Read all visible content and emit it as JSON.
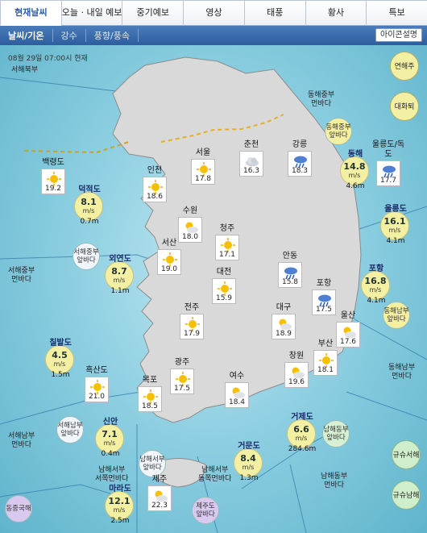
{
  "tabs": [
    {
      "label": "현재날씨",
      "active": true
    },
    {
      "label": "오늘 · 내일 예보",
      "active": false
    },
    {
      "label": "중기예보",
      "active": false
    },
    {
      "label": "영상",
      "active": false
    },
    {
      "label": "태풍",
      "active": false
    },
    {
      "label": "황사",
      "active": false
    },
    {
      "label": "특보",
      "active": false
    }
  ],
  "subnav": [
    {
      "label": "날씨/기온",
      "active": true
    },
    {
      "label": "강수",
      "active": false
    },
    {
      "label": "풍향/풍속",
      "active": false
    }
  ],
  "icon_help_label": "아이콘설명",
  "timestamp": "08월 29일 07:00시 현재",
  "regions": {
    "w_north": "서해북부",
    "w_mid": "서해중부\n먼바다",
    "w_south": "서해남부\n먼바다",
    "e_mid": "동해중부\n먼바다",
    "e_south": "동해남부\n먼바다",
    "s_mid_w": "남해서부\n서쪽먼바다",
    "s_east": "남해서부\n동쪽먼바다",
    "s_far": "남해동부\n먼바다"
  },
  "sea_bubbles": {
    "e_mid_near": "동해중부\n앞바다",
    "w_mid_near": "서해중부\n앞바다",
    "e_south_near": "동해남부\n앞바다",
    "w_south_near": "서해남부\n앞바다",
    "s_w_near": "남해서부\n앞바다",
    "s_e_near": "남해동부\n앞바다",
    "jeju_near": "제주도\n앞바다",
    "china_east": "동중국해"
  },
  "side_buttons": {
    "yeonhae": "연해주",
    "daehwa": "대화퇴",
    "gyushu_w": "규슈서해",
    "gyushu_s": "규슈남해"
  },
  "cities": [
    {
      "name": "백령도",
      "temp": "19.2",
      "icon": "sun-icon"
    },
    {
      "name": "인천",
      "temp": "18.6",
      "icon": "sun-icon"
    },
    {
      "name": "서울",
      "temp": "17.8",
      "icon": "sun-icon"
    },
    {
      "name": "수원",
      "temp": "18.0",
      "icon": "partly-cloudy-icon"
    },
    {
      "name": "춘천",
      "temp": "16.3",
      "icon": "cloud-icon"
    },
    {
      "name": "강릉",
      "temp": "18.3",
      "icon": "rain-icon"
    },
    {
      "name": "울릉도/독도",
      "temp": "17.7",
      "icon": "rain-icon"
    },
    {
      "name": "서산",
      "temp": "19.0",
      "icon": "sun-icon"
    },
    {
      "name": "청주",
      "temp": "17.1",
      "icon": "sun-icon"
    },
    {
      "name": "대전",
      "temp": "15.9",
      "icon": "sun-icon"
    },
    {
      "name": "안동",
      "temp": "15.8",
      "icon": "rain-icon"
    },
    {
      "name": "포항",
      "temp": "17.5",
      "icon": "rain-icon"
    },
    {
      "name": "전주",
      "temp": "17.9",
      "icon": "sun-icon"
    },
    {
      "name": "대구",
      "temp": "18.9",
      "icon": "partly-cloudy-icon"
    },
    {
      "name": "울산",
      "temp": "17.6",
      "icon": "partly-cloudy-icon"
    },
    {
      "name": "부산",
      "temp": "18.1",
      "icon": "sun-icon"
    },
    {
      "name": "흑산도",
      "temp": "21.0",
      "icon": "sun-icon"
    },
    {
      "name": "광주",
      "temp": "17.5",
      "icon": "sun-icon"
    },
    {
      "name": "창원",
      "temp": "19.6",
      "icon": "partly-cloudy-icon"
    },
    {
      "name": "목포",
      "temp": "18.5",
      "icon": "sun-icon"
    },
    {
      "name": "여수",
      "temp": "18.4",
      "icon": "partly-cloudy-icon"
    },
    {
      "name": "제주",
      "temp": "22.3",
      "icon": "partly-cloudy-icon"
    }
  ],
  "buoys": [
    {
      "name": "덕적도",
      "speed": "8.1",
      "unit": "m/s",
      "wave": "0.7m"
    },
    {
      "name": "외연도",
      "speed": "8.7",
      "unit": "m/s",
      "wave": "1.1m"
    },
    {
      "name": "칠발도",
      "speed": "4.5",
      "unit": "m/s",
      "wave": "1.5m"
    },
    {
      "name": "신안",
      "speed": "7.1",
      "unit": "m/s",
      "wave": "0.4m"
    },
    {
      "name": "마라도",
      "speed": "12.1",
      "unit": "m/s",
      "wave": "2.5m"
    },
    {
      "name": "거문도",
      "speed": "8.4",
      "unit": "m/s",
      "wave": "1.3m"
    },
    {
      "name": "거제도",
      "speed": "6.6",
      "unit": "m/s",
      "wave": "284.6m"
    },
    {
      "name": "동해",
      "speed": "14.8",
      "unit": "m/s",
      "wave": "4.6m"
    },
    {
      "name": "울릉도",
      "speed": "16.1",
      "unit": "m/s",
      "wave": "4.1m"
    },
    {
      "name": "포항",
      "speed": "16.8",
      "unit": "m/s",
      "wave": "4.1m"
    }
  ],
  "colors": {
    "sea": "#8fd0e2",
    "land": "#d9d9d9",
    "buoy": "#f3f0a4",
    "nav": "#2d5d9e"
  }
}
